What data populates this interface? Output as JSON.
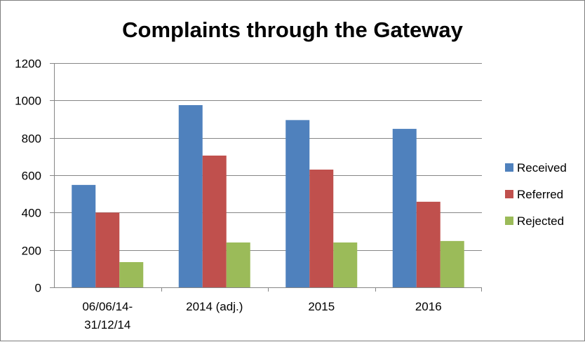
{
  "chart_data": {
    "type": "bar",
    "title": "Complaints through the Gateway",
    "xlabel": "",
    "ylabel": "",
    "ylim": [
      0,
      1200
    ],
    "yticks": [
      0,
      200,
      400,
      600,
      800,
      1000,
      1200
    ],
    "grid": true,
    "legend_position": "right",
    "categories": [
      [
        "06/06/14-",
        "31/12/14"
      ],
      [
        "2014 (adj.)"
      ],
      [
        "2015"
      ],
      [
        "2016"
      ]
    ],
    "series": [
      {
        "name": "Received",
        "color": "#4f81bd",
        "values": [
          548,
          975,
          895,
          848
        ]
      },
      {
        "name": "Referred",
        "color": "#c0504d",
        "values": [
          400,
          705,
          630,
          458
        ]
      },
      {
        "name": "Rejected",
        "color": "#9bbb59",
        "values": [
          135,
          240,
          240,
          248
        ]
      }
    ]
  }
}
